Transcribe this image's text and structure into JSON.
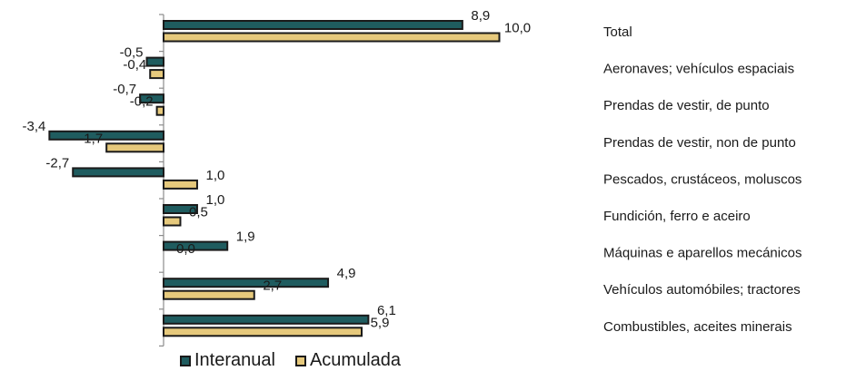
{
  "chart_data": {
    "type": "bar",
    "orientation": "horizontal",
    "categories": [
      "Total",
      "Aeronaves; vehículos espaciais",
      "Prendas de vestir, de punto",
      "Prendas de vestir, non de punto",
      "Pescados, crustáceos, moluscos",
      "Fundición, ferro e aceiro",
      "Máquinas e aparellos mecánicos",
      "Vehículos automóbiles; tractores",
      "Combustibles, aceites minerais"
    ],
    "series": [
      {
        "name": "Interanual",
        "color": "#1f5c5f",
        "values": [
          8.9,
          -0.5,
          -0.7,
          -3.4,
          -2.7,
          1.0,
          1.9,
          4.9,
          6.1
        ],
        "labels": [
          "8,9",
          "-0,5",
          "-0,7",
          "-3,4",
          "-2,7",
          "1,0",
          "1,9",
          "4,9",
          "6,1"
        ]
      },
      {
        "name": "Acumulada",
        "color": "#e6c97c",
        "values": [
          10.0,
          -0.4,
          -0.2,
          -1.7,
          1.0,
          0.5,
          0.0,
          2.7,
          5.9
        ],
        "labels": [
          "10,0",
          "-0,4",
          "-0,2",
          "-1,7",
          "1,0",
          "0,5",
          "0,0",
          "2,7",
          "5,9"
        ]
      }
    ],
    "xlim": [
      -3.4,
      10.0
    ],
    "grid": false,
    "legend_position": "bottom"
  },
  "legend": {
    "interanual": "Interanual",
    "acumulada": "Acumulada"
  },
  "colors": {
    "interanual": "#1f5c5f",
    "acumulada": "#e6c97c",
    "outline": "#1a1a1a",
    "axis": "#8c8c8c"
  }
}
